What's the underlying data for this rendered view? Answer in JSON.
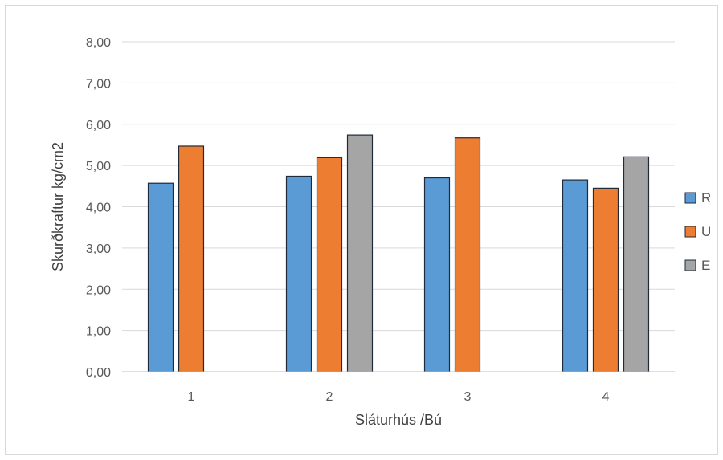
{
  "chart_data": {
    "type": "bar",
    "title": "",
    "xlabel": "Sláturhús /Bú",
    "ylabel": "Skurðkraftur kg/cm2",
    "ylim": [
      0,
      8
    ],
    "ytick_step": 1,
    "yticks": [
      "0,00",
      "1,00",
      "2,00",
      "3,00",
      "4,00",
      "5,00",
      "6,00",
      "7,00",
      "8,00"
    ],
    "categories": [
      "1",
      "2",
      "3",
      "4"
    ],
    "grid": true,
    "legend_position": "right",
    "series": [
      {
        "name": "R",
        "color": "#5b9bd5",
        "values": [
          4.57,
          4.74,
          4.7,
          4.65
        ]
      },
      {
        "name": "U",
        "color": "#ed7d31",
        "values": [
          5.47,
          5.19,
          5.67,
          4.45
        ]
      },
      {
        "name": "E",
        "color": "#a5a5a5",
        "values": [
          null,
          5.74,
          null,
          5.21
        ]
      }
    ]
  }
}
